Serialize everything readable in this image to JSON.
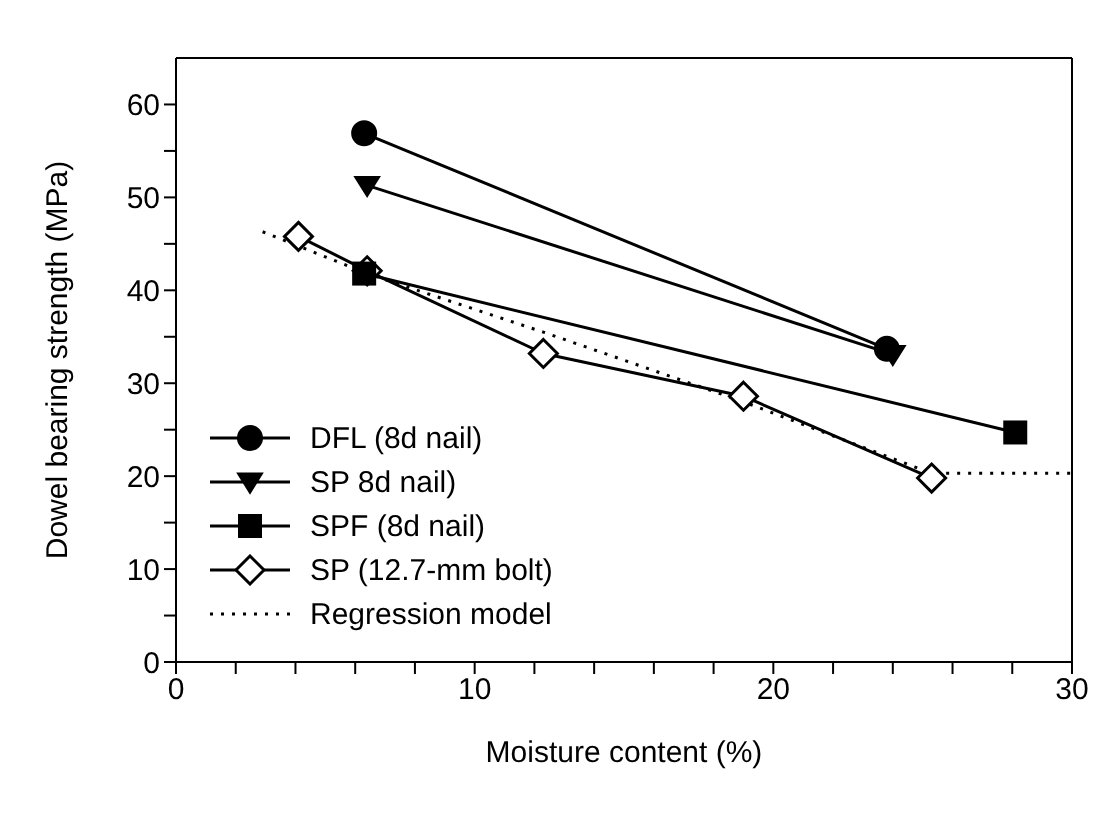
{
  "chart_data": {
    "type": "line",
    "xlabel": "Moisture content (%)",
    "ylabel": "Dowel bearing strength (MPa)",
    "xlim": [
      0,
      30
    ],
    "xticks": [
      0,
      {
        "value": 2,
        "label": null
      },
      {
        "value": 4,
        "label": null
      },
      {
        "value": 6,
        "label": null
      },
      {
        "value": 8,
        "label": null
      },
      10,
      {
        "value": 12,
        "label": null
      },
      {
        "value": 14,
        "label": null
      },
      {
        "value": 16,
        "label": null
      },
      {
        "value": 18,
        "label": null
      },
      20,
      {
        "value": 22,
        "label": null
      },
      {
        "value": 24,
        "label": null
      },
      {
        "value": 26,
        "label": null
      },
      {
        "value": 28,
        "label": null
      },
      30
    ],
    "ylim": [
      0,
      65
    ],
    "yticks": [
      0,
      {
        "value": 5,
        "label": null
      },
      10,
      {
        "value": 15,
        "label": null
      },
      20,
      {
        "value": 25,
        "label": null
      },
      30,
      {
        "value": 35,
        "label": null
      },
      40,
      {
        "value": 45,
        "label": null
      },
      50,
      {
        "value": 55,
        "label": null
      },
      60
    ],
    "legend": "bottom left",
    "series": [
      {
        "name": "DFL (8d nail)",
        "color": "#000000",
        "marker": "circle",
        "line_style": "solid",
        "x": [
          6.3,
          23.8
        ],
        "values": [
          56.9,
          33.7
        ]
      },
      {
        "name": "SP 8d nail)",
        "color": "#000000",
        "marker": "triangle",
        "line_style": "solid",
        "x": [
          6.4,
          24
        ],
        "values": [
          51.3,
          33.1
        ]
      },
      {
        "name": "SPF (8d nail)",
        "color": "#000000",
        "marker": "square",
        "line_style": "solid",
        "x": [
          6.3,
          28.1
        ],
        "values": [
          41.8,
          24.7
        ]
      },
      {
        "name": "SP (12.7-mm bolt)",
        "color": "#000000",
        "marker": "diamond",
        "line_style": "solid",
        "x": [
          4.1,
          6.4,
          12.3,
          19.0,
          25.3
        ],
        "values": [
          45.8,
          42.1,
          33.2,
          28.6,
          19.8
        ]
      },
      {
        "name": "Regression model",
        "color": "#000000",
        "marker": "none",
        "line_style": "dotted",
        "x": [
          2.9,
          6.4,
          12.3,
          19.0,
          25.3,
          30
        ],
        "values": [
          46.3,
          41.8,
          35.5,
          28.0,
          20.3,
          20.3
        ]
      }
    ]
  }
}
